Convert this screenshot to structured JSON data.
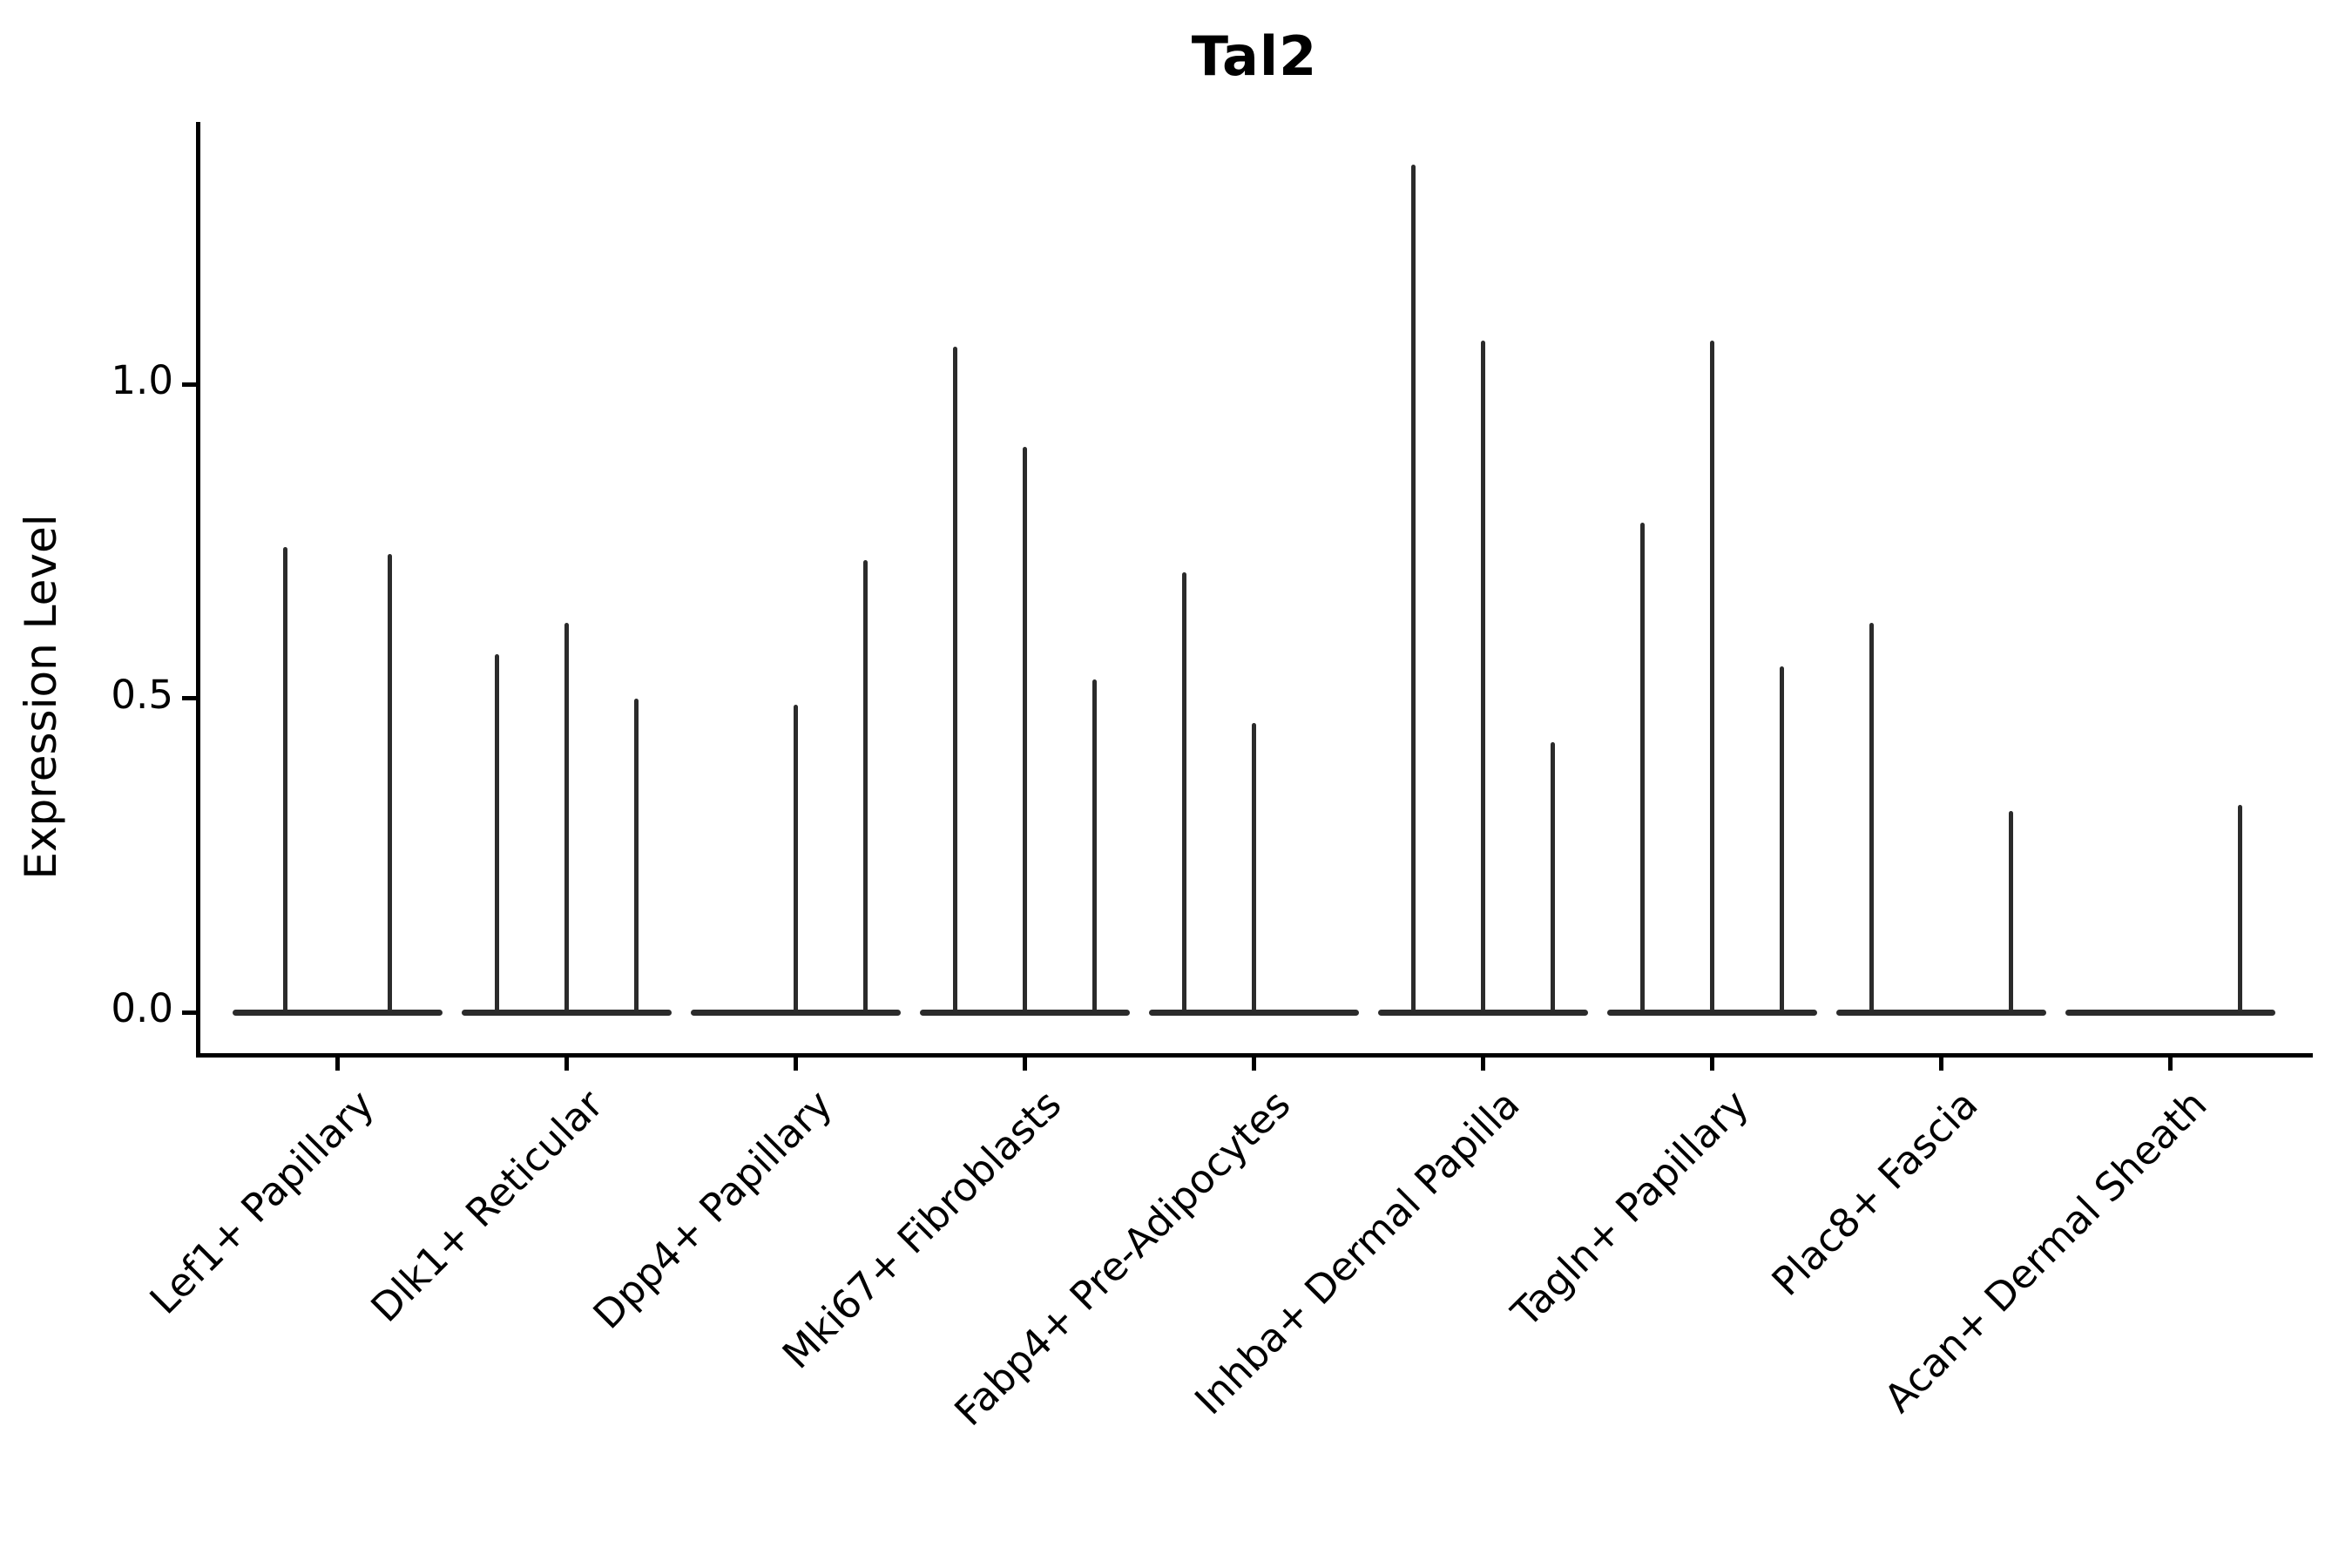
{
  "chart_data": {
    "type": "violin",
    "title": "Tal2",
    "xlabel": "",
    "ylabel": "Expression Level",
    "legend": "none",
    "grid": false,
    "ylim": [
      0,
      1.41
    ],
    "yticks": [
      {
        "label": "0.0",
        "value": 0.0
      },
      {
        "label": "0.5",
        "value": 0.5
      },
      {
        "label": "1.0",
        "value": 1.0
      }
    ],
    "categories": [
      "Lef1+ Papillary",
      "Dlk1+ Reticular",
      "Dpp4+ Papillary",
      "Mki67+ Fibroblasts",
      "Fabp4+ Pre-Adipocytes",
      "Inhba+ Dermal Papilla",
      "Tagln+ Papillary",
      "Plac8+ Fascia",
      "Acan+ Dermal Sheath"
    ],
    "groups": [
      {
        "category": "Lef1+ Papillary",
        "violin_max_values": [
          0.74,
          0.73
        ]
      },
      {
        "category": "Dlk1+ Reticular",
        "violin_max_values": [
          0.57,
          0.62,
          0.5
        ]
      },
      {
        "category": "Dpp4+ Papillary",
        "violin_max_values": [
          0,
          0.49,
          0.72
        ]
      },
      {
        "category": "Mki67+ Fibroblasts",
        "violin_max_values": [
          1.06,
          0.9,
          0.53
        ]
      },
      {
        "category": "Fabp4+ Pre-Adipocytes",
        "violin_max_values": [
          0.7,
          0.46,
          0
        ]
      },
      {
        "category": "Inhba+ Dermal Papilla",
        "violin_max_values": [
          1.35,
          1.07,
          0.43
        ]
      },
      {
        "category": "Tagln+ Papillary",
        "violin_max_values": [
          0.78,
          1.07,
          0.55
        ]
      },
      {
        "category": "Plac8+ Fascia",
        "violin_max_values": [
          0.62,
          0,
          0.32
        ]
      },
      {
        "category": "Acan+ Dermal Sheath",
        "violin_max_values": [
          0,
          0,
          0.33
        ]
      }
    ],
    "violin_note": "Violins are collapsed to a flat line at 0 with a thin spike up to each violin's maximum; a value of 0 means completely flat (no spike).",
    "line_color": "#2b2b2b",
    "axis_color": "#000000",
    "background_color": "#ffffff"
  }
}
